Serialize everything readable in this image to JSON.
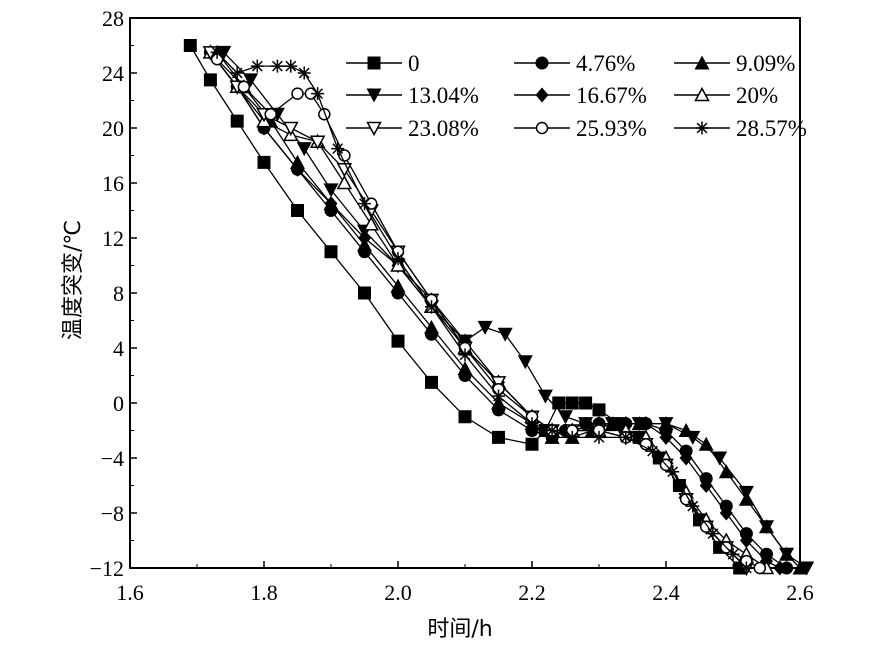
{
  "chart_data": {
    "type": "line",
    "xlabel": "时间/h",
    "ylabel": "温度突变/℃",
    "xlim": [
      1.6,
      2.6
    ],
    "ylim": [
      -12,
      28
    ],
    "xticks": [
      "1.6",
      "1.8",
      "2.0",
      "2.2",
      "2.4",
      "2.6"
    ],
    "yticks": [
      "−12",
      "−8",
      "−4",
      "0",
      "4",
      "8",
      "12",
      "16",
      "20",
      "24",
      "28"
    ],
    "xtick_values": [
      1.6,
      1.8,
      2.0,
      2.2,
      2.4,
      2.6
    ],
    "ytick_values": [
      -12,
      -8,
      -4,
      0,
      4,
      8,
      12,
      16,
      20,
      24,
      28
    ],
    "grid": false,
    "legend_position": "top-right",
    "series": [
      {
        "name": "0",
        "marker": "square-filled",
        "x": [
          1.69,
          1.72,
          1.76,
          1.8,
          1.85,
          1.9,
          1.95,
          2.0,
          2.05,
          2.1,
          2.15,
          2.2,
          2.22,
          2.24,
          2.26,
          2.28,
          2.3,
          2.33,
          2.36,
          2.39,
          2.42,
          2.45,
          2.48,
          2.51
        ],
        "y": [
          26,
          23.5,
          20.5,
          17.5,
          14,
          11,
          8,
          4.5,
          1.5,
          -1,
          -2.5,
          -3,
          -2,
          0,
          0,
          0,
          -0.5,
          -1.5,
          -2.5,
          -4,
          -6,
          -8.5,
          -10.5,
          -12
        ]
      },
      {
        "name": "4.76%",
        "marker": "circle-filled",
        "x": [
          1.72,
          1.76,
          1.8,
          1.85,
          1.9,
          1.95,
          2.0,
          2.05,
          2.1,
          2.15,
          2.2,
          2.23,
          2.25,
          2.28,
          2.3,
          2.34,
          2.37,
          2.4,
          2.43,
          2.46,
          2.49,
          2.52,
          2.55,
          2.58
        ],
        "y": [
          25.5,
          23,
          20,
          17,
          14,
          11,
          8,
          5,
          2,
          -0.5,
          -2,
          -2.5,
          -2,
          -1.5,
          -1.5,
          -1.5,
          -1.5,
          -2,
          -3.5,
          -5.5,
          -7.5,
          -9.5,
          -11,
          -12
        ]
      },
      {
        "name": "9.09%",
        "marker": "triangle-up-filled",
        "x": [
          1.73,
          1.77,
          1.81,
          1.85,
          1.9,
          1.95,
          2.0,
          2.05,
          2.1,
          2.15,
          2.2,
          2.23,
          2.26,
          2.29,
          2.32,
          2.36,
          2.4,
          2.43,
          2.46,
          2.49,
          2.52,
          2.55,
          2.58,
          2.6
        ],
        "y": [
          25.5,
          23,
          20.5,
          17.5,
          14.5,
          11.5,
          8.5,
          5.5,
          2.5,
          0,
          -1.5,
          -2.5,
          -2.5,
          -2,
          -1.5,
          -1.5,
          -1.5,
          -2,
          -3,
          -5,
          -7,
          -9,
          -11,
          -12
        ]
      },
      {
        "name": "13.04%",
        "marker": "triangle-down-filled",
        "x": [
          1.74,
          1.78,
          1.82,
          1.86,
          1.9,
          1.95,
          2.0,
          2.05,
          2.1,
          2.13,
          2.16,
          2.19,
          2.22,
          2.25,
          2.28,
          2.32,
          2.36,
          2.4,
          2.44,
          2.48,
          2.52,
          2.55,
          2.58,
          2.61
        ],
        "y": [
          25.5,
          23.5,
          21,
          18.5,
          15.5,
          12.5,
          10,
          7,
          4.5,
          5.5,
          5,
          3,
          0.5,
          -1,
          -1.5,
          -1.5,
          -1.5,
          -1.5,
          -2.5,
          -4,
          -6.5,
          -9,
          -11,
          -12
        ]
      },
      {
        "name": "16.67%",
        "marker": "diamond-filled",
        "x": [
          1.72,
          1.76,
          1.8,
          1.85,
          1.9,
          1.95,
          2.0,
          2.05,
          2.1,
          2.15,
          2.2,
          2.23,
          2.26,
          2.3,
          2.34,
          2.37,
          2.4,
          2.43,
          2.46,
          2.49,
          2.52,
          2.55,
          2.57
        ],
        "y": [
          25.5,
          23,
          20,
          17,
          14.5,
          12,
          10,
          7.5,
          4.5,
          1.5,
          -1,
          -2,
          -2,
          -1.5,
          -1.5,
          -1.5,
          -2.5,
          -4,
          -6,
          -8,
          -10,
          -11.5,
          -12
        ]
      },
      {
        "name": "20%",
        "marker": "triangle-up-open",
        "x": [
          1.72,
          1.76,
          1.8,
          1.84,
          1.88,
          1.92,
          1.96,
          2.0,
          2.05,
          2.1,
          2.15,
          2.2,
          2.23,
          2.26,
          2.3,
          2.34,
          2.37,
          2.4,
          2.43,
          2.46,
          2.49,
          2.52,
          2.55
        ],
        "y": [
          25.5,
          23,
          20.5,
          19.5,
          19,
          16,
          13,
          10,
          7,
          4,
          1.5,
          -1,
          -2,
          -2,
          -2,
          -2,
          -2.5,
          -4,
          -6.5,
          -8.5,
          -10,
          -11,
          -12
        ]
      },
      {
        "name": "23.08%",
        "marker": "triangle-down-open",
        "x": [
          1.72,
          1.76,
          1.8,
          1.84,
          1.88,
          1.92,
          1.96,
          2.0,
          2.05,
          2.1,
          2.15,
          2.2,
          2.23,
          2.26,
          2.3,
          2.34,
          2.37,
          2.4,
          2.43,
          2.46,
          2.49,
          2.52
        ],
        "y": [
          25.5,
          23,
          21,
          20,
          19,
          17,
          14,
          11,
          7.5,
          4,
          1.5,
          -1,
          -2,
          -2,
          -2,
          -2.5,
          -3,
          -4.5,
          -7,
          -9,
          -10.5,
          -12
        ]
      },
      {
        "name": "25.93%",
        "marker": "circle-open",
        "x": [
          1.73,
          1.77,
          1.81,
          1.85,
          1.87,
          1.89,
          1.92,
          1.96,
          2.0,
          2.05,
          2.1,
          2.15,
          2.2,
          2.23,
          2.26,
          2.3,
          2.34,
          2.37,
          2.4,
          2.43,
          2.46,
          2.49,
          2.52,
          2.54
        ],
        "y": [
          25,
          23,
          21,
          22.5,
          22.5,
          21,
          18,
          14.5,
          11,
          7.5,
          4,
          1,
          -1,
          -2,
          -2,
          -2,
          -2.5,
          -3,
          -4.5,
          -7,
          -9,
          -10.5,
          -11.5,
          -12
        ]
      },
      {
        "name": "28.57%",
        "marker": "asterisk",
        "x": [
          1.73,
          1.76,
          1.79,
          1.82,
          1.84,
          1.86,
          1.88,
          1.91,
          1.95,
          2.0,
          2.05,
          2.1,
          2.15,
          2.2,
          2.23,
          2.26,
          2.3,
          2.34,
          2.38,
          2.41,
          2.44,
          2.47,
          2.5,
          2.52
        ],
        "y": [
          25.5,
          24,
          24.5,
          24.5,
          24.5,
          24,
          22.5,
          18.5,
          14.5,
          10.5,
          7,
          3.5,
          0.5,
          -1.5,
          -2,
          -2.5,
          -2.5,
          -2.5,
          -3.5,
          -5,
          -7.5,
          -9.5,
          -11,
          -12
        ]
      }
    ]
  }
}
